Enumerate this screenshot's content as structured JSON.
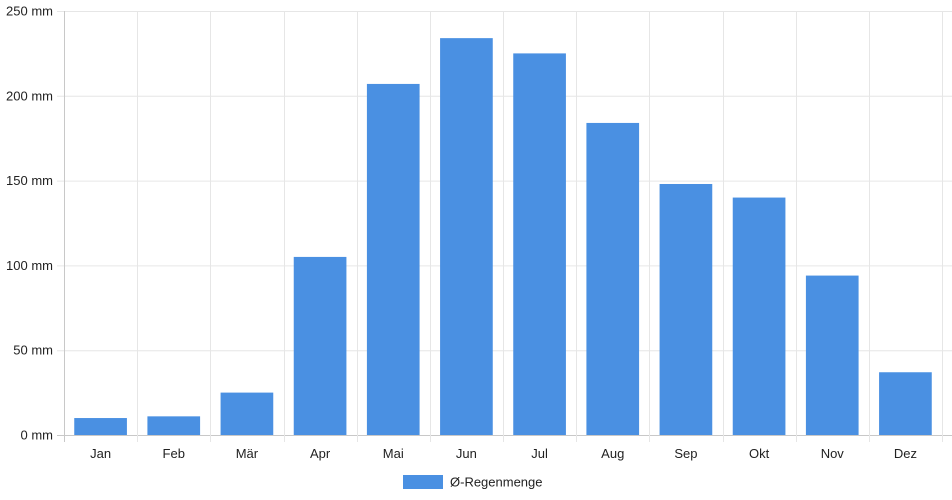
{
  "chart_data": {
    "type": "bar",
    "categories": [
      "Jan",
      "Feb",
      "Mär",
      "Apr",
      "Mai",
      "Jun",
      "Jul",
      "Aug",
      "Sep",
      "Okt",
      "Nov",
      "Dez"
    ],
    "series": [
      {
        "name": "Ø-Regenmenge",
        "values": [
          10,
          11,
          25,
          105,
          207,
          234,
          225,
          184,
          148,
          140,
          94,
          37
        ],
        "color": "#4a90e2"
      }
    ],
    "ylim": [
      0,
      250
    ],
    "yticks": [
      0,
      50,
      100,
      150,
      200,
      250
    ],
    "yticks_text": [
      "0 mm",
      "50 mm",
      "100 mm",
      "150 mm",
      "200 mm",
      "250 mm"
    ],
    "grid": true,
    "legend_position": "bottom"
  }
}
